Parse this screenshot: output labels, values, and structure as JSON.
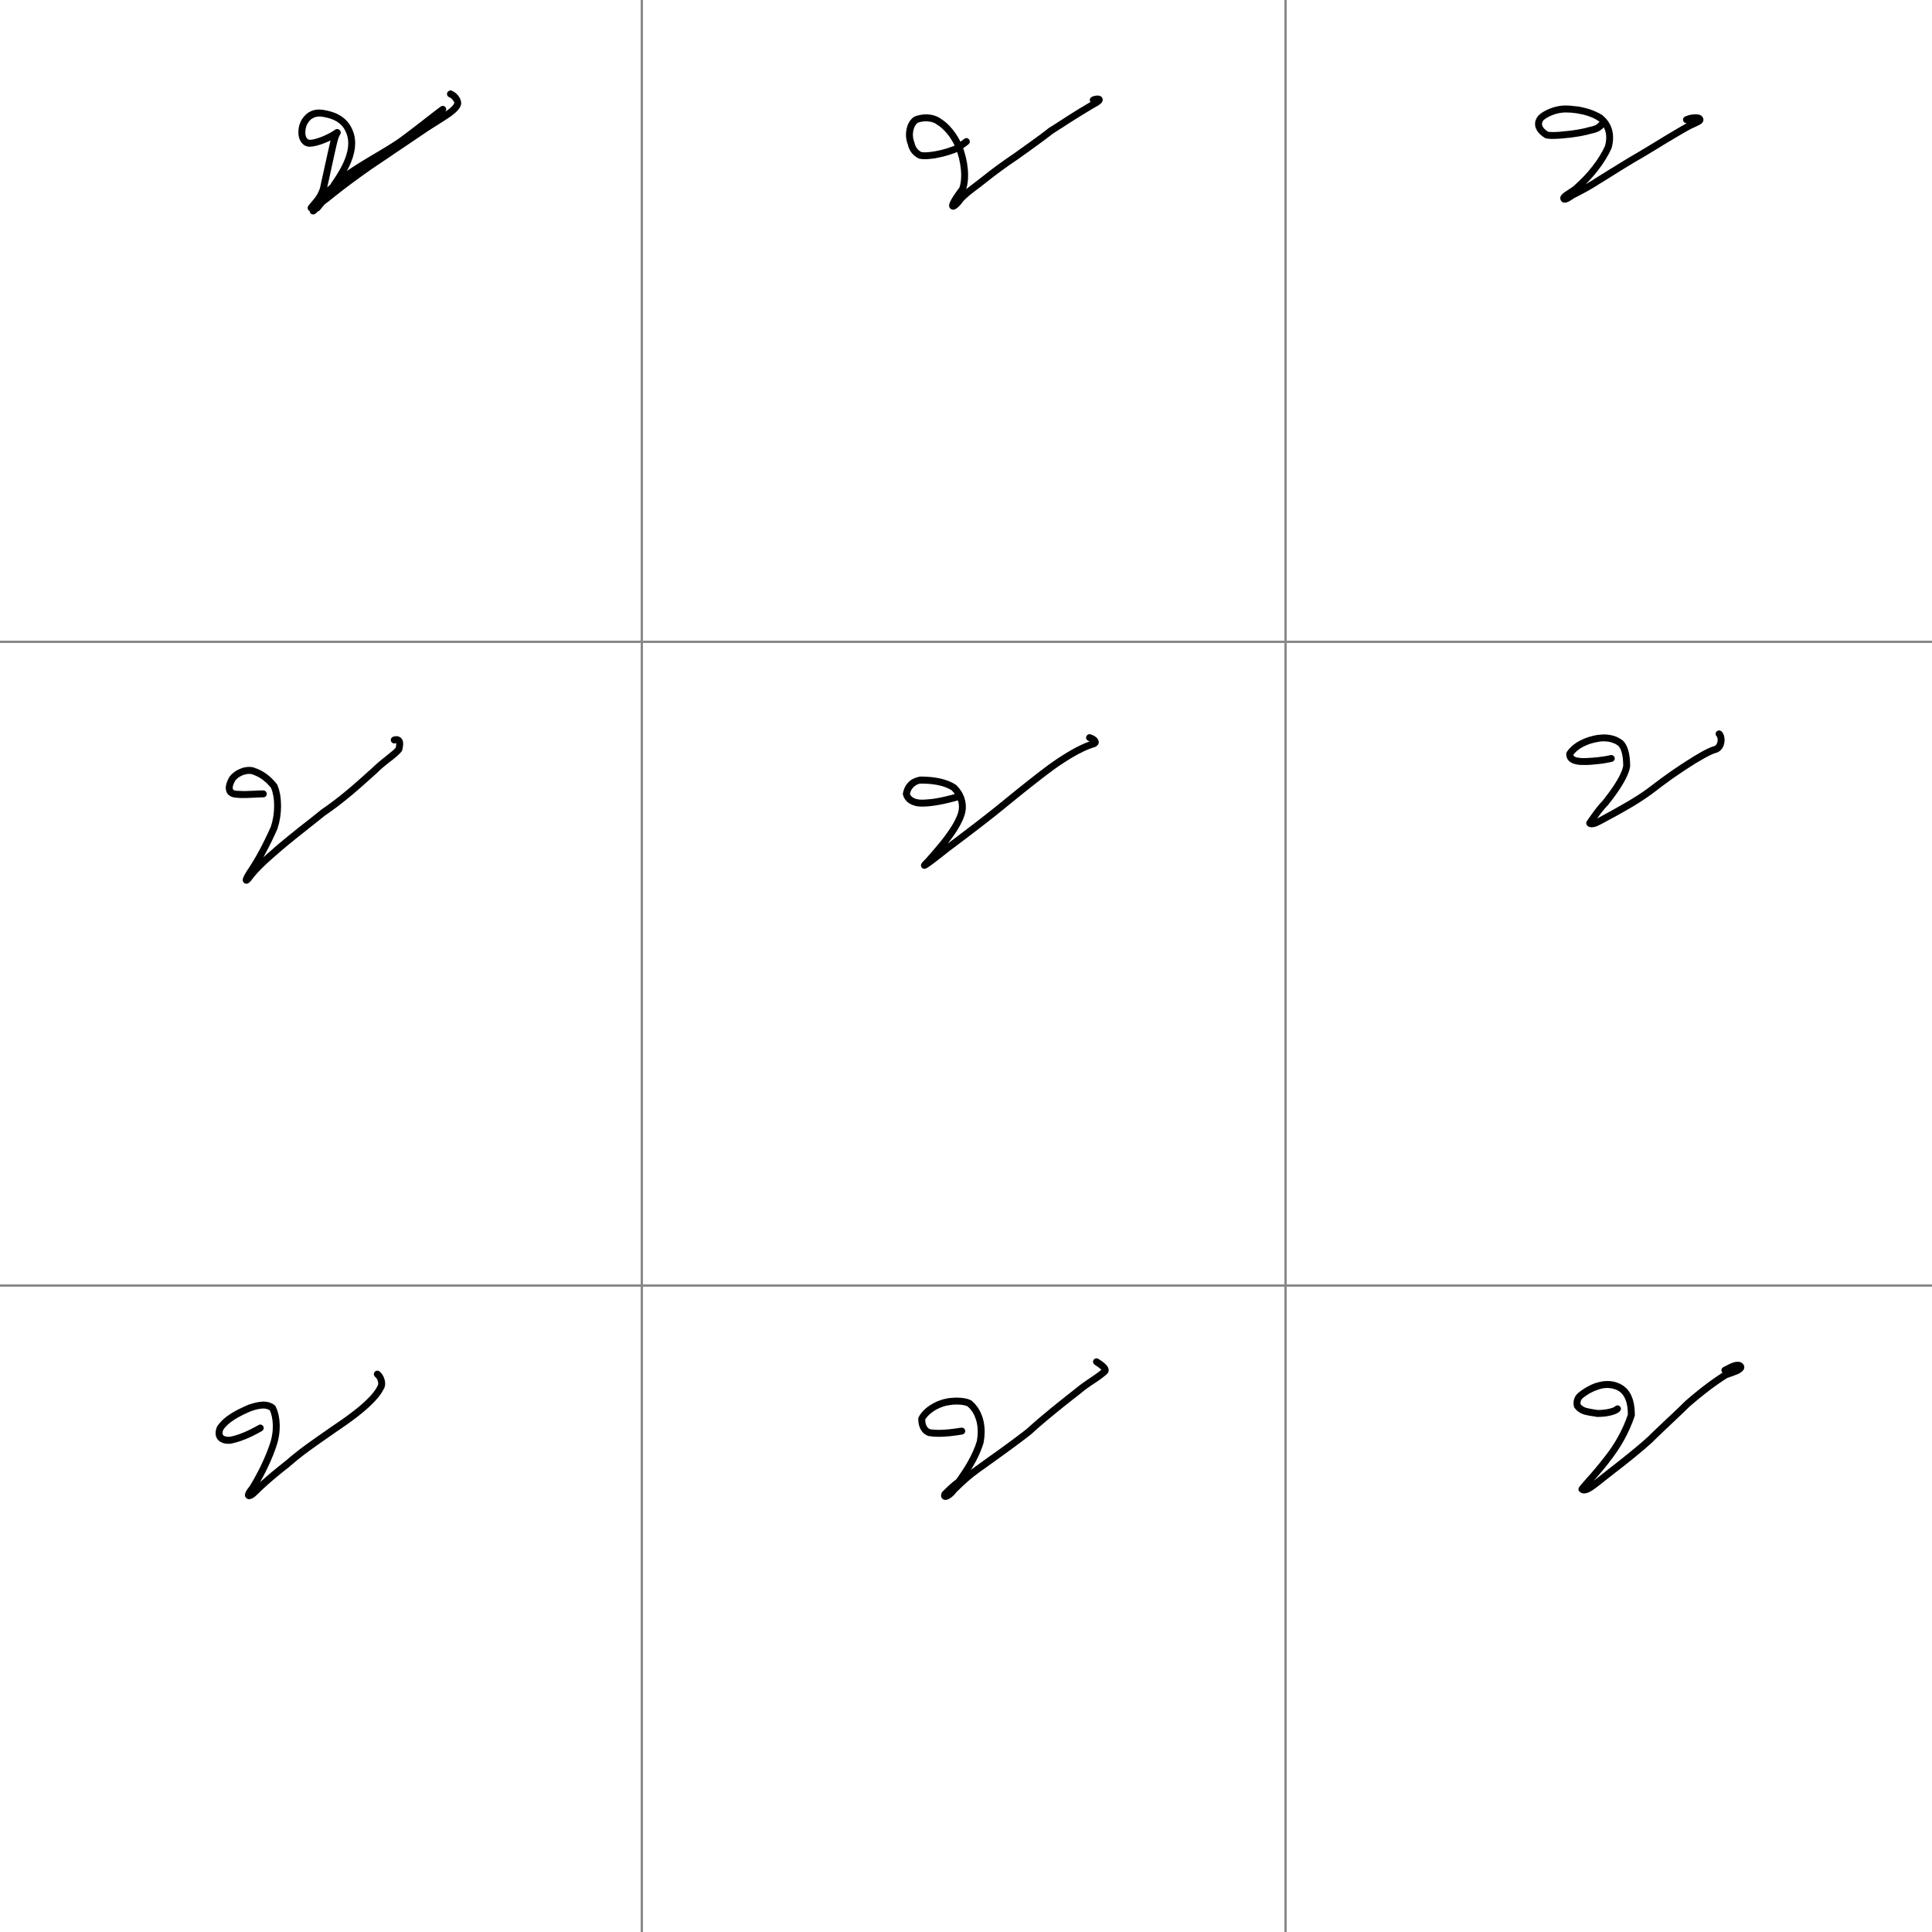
{
  "grid": {
    "rows": 3,
    "columns": 3,
    "divider_color": "#888888",
    "background_color": "#ffffff"
  },
  "glyph": {
    "stroke_color": "#000000",
    "count": 9
  },
  "cells": [
    {
      "row": 0,
      "col": 0,
      "glyph": "handwritten-glyph-sample-1"
    },
    {
      "row": 0,
      "col": 1,
      "glyph": "handwritten-glyph-sample-2"
    },
    {
      "row": 0,
      "col": 2,
      "glyph": "handwritten-glyph-sample-3"
    },
    {
      "row": 1,
      "col": 0,
      "glyph": "handwritten-glyph-sample-4"
    },
    {
      "row": 1,
      "col": 1,
      "glyph": "handwritten-glyph-sample-5"
    },
    {
      "row": 1,
      "col": 2,
      "glyph": "handwritten-glyph-sample-6"
    },
    {
      "row": 2,
      "col": 0,
      "glyph": "handwritten-glyph-sample-7"
    },
    {
      "row": 2,
      "col": 1,
      "glyph": "handwritten-glyph-sample-8"
    },
    {
      "row": 2,
      "col": 2,
      "glyph": "handwritten-glyph-sample-9"
    }
  ]
}
